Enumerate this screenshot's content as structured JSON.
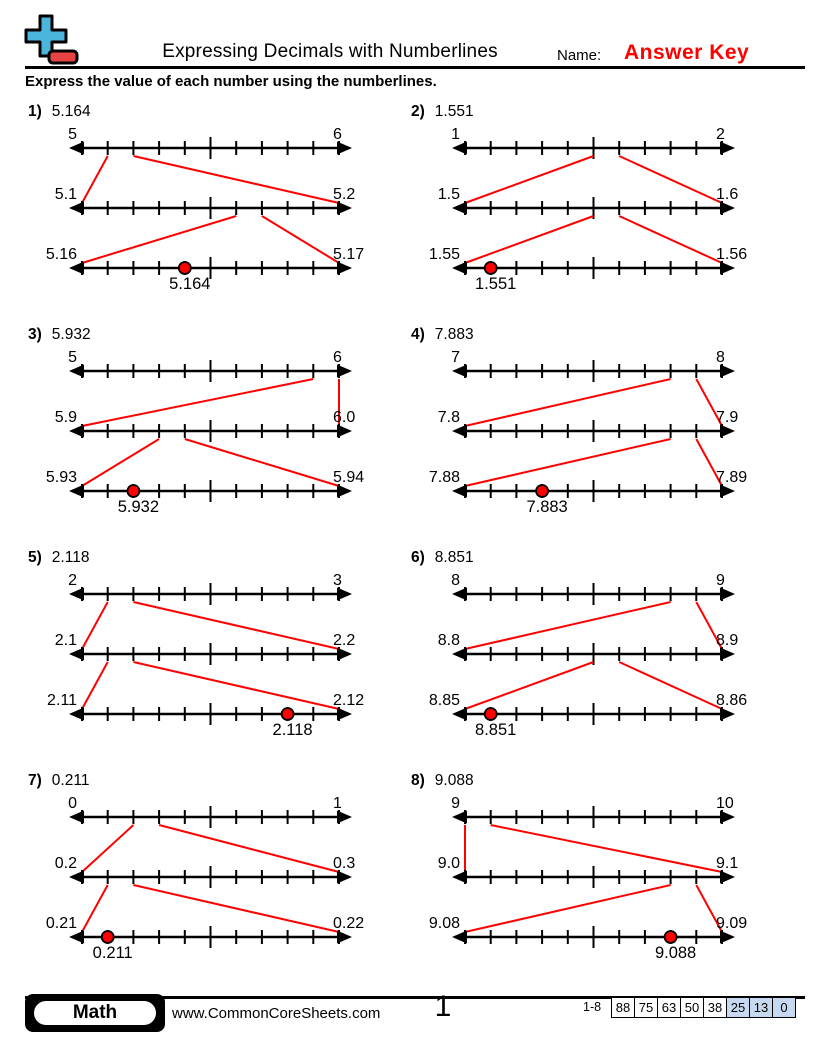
{
  "header": {
    "title": "Expressing Decimals with Numberlines",
    "name_label": "Name:",
    "answer_key": "Answer Key"
  },
  "instructions": "Express the value of each number using the numberlines.",
  "problems": [
    {
      "number": "1)",
      "value": "5.164",
      "lines": [
        {
          "left": "5",
          "right": "6",
          "zoom": [
            1,
            2
          ]
        },
        {
          "left": "5.1",
          "right": "5.2",
          "zoom": [
            6,
            7
          ]
        },
        {
          "left": "5.16",
          "right": "5.17",
          "dot": 4,
          "answer": "5.164"
        }
      ]
    },
    {
      "number": "2)",
      "value": "1.551",
      "lines": [
        {
          "left": "1",
          "right": "2",
          "zoom": [
            5,
            6
          ]
        },
        {
          "left": "1.5",
          "right": "1.6",
          "zoom": [
            5,
            6
          ]
        },
        {
          "left": "1.55",
          "right": "1.56",
          "dot": 1,
          "answer": "1.551"
        }
      ]
    },
    {
      "number": "3)",
      "value": "5.932",
      "lines": [
        {
          "left": "5",
          "right": "6",
          "zoom": [
            9,
            10
          ]
        },
        {
          "left": "5.9",
          "right": "6.0",
          "zoom": [
            3,
            4
          ]
        },
        {
          "left": "5.93",
          "right": "5.94",
          "dot": 2,
          "answer": "5.932"
        }
      ]
    },
    {
      "number": "4)",
      "value": "7.883",
      "lines": [
        {
          "left": "7",
          "right": "8",
          "zoom": [
            8,
            9
          ]
        },
        {
          "left": "7.8",
          "right": "7.9",
          "zoom": [
            8,
            9
          ]
        },
        {
          "left": "7.88",
          "right": "7.89",
          "dot": 3,
          "answer": "7.883"
        }
      ]
    },
    {
      "number": "5)",
      "value": "2.118",
      "lines": [
        {
          "left": "2",
          "right": "3",
          "zoom": [
            1,
            2
          ]
        },
        {
          "left": "2.1",
          "right": "2.2",
          "zoom": [
            1,
            2
          ]
        },
        {
          "left": "2.11",
          "right": "2.12",
          "dot": 8,
          "answer": "2.118"
        }
      ]
    },
    {
      "number": "6)",
      "value": "8.851",
      "lines": [
        {
          "left": "8",
          "right": "9",
          "zoom": [
            8,
            9
          ]
        },
        {
          "left": "8.8",
          "right": "8.9",
          "zoom": [
            5,
            6
          ]
        },
        {
          "left": "8.85",
          "right": "8.86",
          "dot": 1,
          "answer": "8.851"
        }
      ]
    },
    {
      "number": "7)",
      "value": "0.211",
      "lines": [
        {
          "left": "0",
          "right": "1",
          "zoom": [
            2,
            3
          ]
        },
        {
          "left": "0.2",
          "right": "0.3",
          "zoom": [
            1,
            2
          ]
        },
        {
          "left": "0.21",
          "right": "0.22",
          "dot": 1,
          "answer": "0.211"
        }
      ]
    },
    {
      "number": "8)",
      "value": "9.088",
      "lines": [
        {
          "left": "9",
          "right": "10",
          "zoom": [
            0,
            1
          ]
        },
        {
          "left": "9.0",
          "right": "9.1",
          "zoom": [
            8,
            9
          ]
        },
        {
          "left": "9.08",
          "right": "9.09",
          "dot": 8,
          "answer": "9.088"
        }
      ]
    }
  ],
  "footer": {
    "subject": "Math",
    "website": "www.CommonCoreSheets.com",
    "page": "1",
    "score_label": "1-8",
    "scores": [
      "88",
      "75",
      "63",
      "50",
      "38",
      "25",
      "13",
      "0"
    ],
    "highlight_from_index": 5
  },
  "colors": {
    "red": "#ff0000",
    "answer_red": "#fe0000",
    "logo_blue": "#4cb5dc",
    "logo_red": "#e84343",
    "score_highlight": "#c6d9f0",
    "ink": "#000000"
  }
}
